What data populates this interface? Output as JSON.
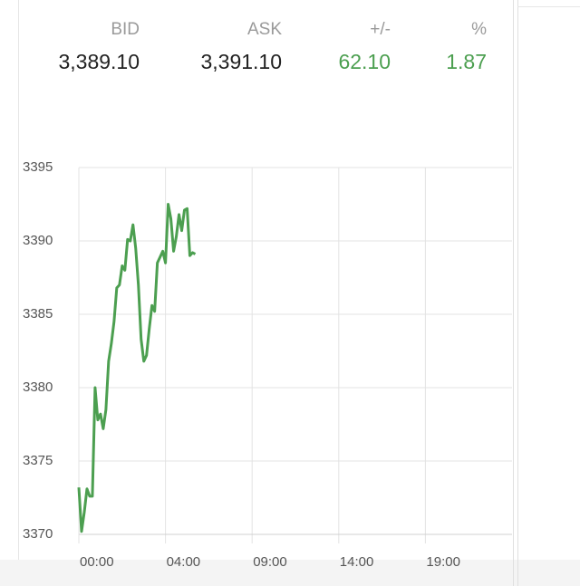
{
  "quote": {
    "columns": [
      {
        "label": "BID",
        "value": "3,389.10"
      },
      {
        "label": "ASK",
        "value": "3,391.10"
      },
      {
        "label": "+/-",
        "value": "62.10"
      },
      {
        "label": "%",
        "value": "1.87"
      }
    ]
  },
  "chart_data": {
    "type": "line",
    "series": [
      {
        "color": "#4c9f50",
        "values": [
          3373.2,
          3370.2,
          3371.5,
          3373.1,
          3372.6,
          3372.6,
          3380,
          3377.8,
          3378.2,
          3377.2,
          3378.5,
          3381.8,
          3383,
          3384.5,
          3386.8,
          3387,
          3388.3,
          3388,
          3390.1,
          3390,
          3391.1,
          3389.5,
          3387,
          3383.3,
          3381.8,
          3382.2,
          3384,
          3385.6,
          3385.2,
          3388.5,
          3388.9,
          3389.3,
          3388.5,
          3392.5,
          3391.5,
          3389.3,
          3390.3,
          3391.8,
          3390.7,
          3392.1,
          3392.2,
          3389,
          3389.2,
          3389.1
        ]
      }
    ],
    "xlim": [
      0,
      160
    ],
    "xticks": [
      {
        "value": 0,
        "label": "00:00"
      },
      {
        "value": 32,
        "label": "04:00"
      },
      {
        "value": 64,
        "label": "09:00"
      },
      {
        "value": 96,
        "label": "14:00"
      },
      {
        "value": 128,
        "label": "19:00"
      }
    ],
    "ylim": [
      3370,
      3395
    ],
    "yticks": [
      3370,
      3375,
      3380,
      3385,
      3390,
      3395
    ],
    "grid": true
  }
}
